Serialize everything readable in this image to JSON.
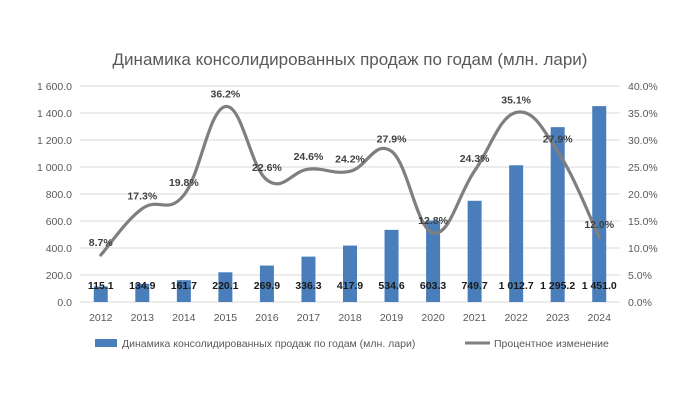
{
  "chart_data": {
    "type": "bar",
    "title": "Динамика консолидированных продаж по годам (млн. лари)",
    "categories": [
      "2012",
      "2013",
      "2014",
      "2015",
      "2016",
      "2017",
      "2018",
      "2019",
      "2020",
      "2021",
      "2022",
      "2023",
      "2024"
    ],
    "series": [
      {
        "name": "Динамика консолидированных продаж по годам (млн. лари)",
        "type": "bar",
        "axis": "left",
        "values": [
          115.1,
          134.9,
          161.7,
          220.1,
          269.9,
          336.3,
          417.9,
          534.6,
          603.3,
          749.7,
          1012.7,
          1295.2,
          1451.0
        ],
        "labels": [
          "115.1",
          "134.9",
          "161.7",
          "220.1",
          "269.9",
          "336.3",
          "417.9",
          "534.6",
          "603.3",
          "749.7",
          "1 012.7",
          "1 295.2",
          "1 451.0"
        ],
        "color": "#4a7ebb"
      },
      {
        "name": "Процентное изменение",
        "type": "line",
        "smooth": true,
        "axis": "right",
        "values": [
          8.7,
          17.3,
          19.8,
          36.2,
          22.6,
          24.6,
          24.2,
          27.9,
          12.8,
          24.3,
          35.1,
          27.9,
          12.0
        ],
        "labels": [
          "8.7%",
          "17.3%",
          "19.8%",
          "36.2%",
          "22.6%",
          "24.6%",
          "24.2%",
          "27.9%",
          "12.8%",
          "24.3%",
          "35.1%",
          "27.9%",
          "12.0%"
        ],
        "color": "#7f7f7f"
      }
    ],
    "y_left": {
      "ylim": [
        0,
        1600
      ],
      "ticks": [
        0,
        200,
        400,
        600,
        800,
        1000,
        1200,
        1400,
        1600
      ],
      "tick_labels": [
        "0.0",
        "200.0",
        "400.0",
        "600.0",
        "800.0",
        "1 000.0",
        "1 200.0",
        "1 400.0",
        "1 600.0"
      ]
    },
    "y_right": {
      "ylim": [
        0,
        40
      ],
      "ticks": [
        0,
        5,
        10,
        15,
        20,
        25,
        30,
        35,
        40
      ],
      "tick_labels": [
        "0.0%",
        "5.0%",
        "10.0%",
        "15.0%",
        "20.0%",
        "25.0%",
        "30.0%",
        "35.0%",
        "40.0%"
      ]
    },
    "grid": true,
    "legend_position": "bottom"
  },
  "colors": {
    "bar": "#4a7ebb",
    "line": "#7f7f7f",
    "grid": "#d9d9d9",
    "text": "#595959"
  }
}
